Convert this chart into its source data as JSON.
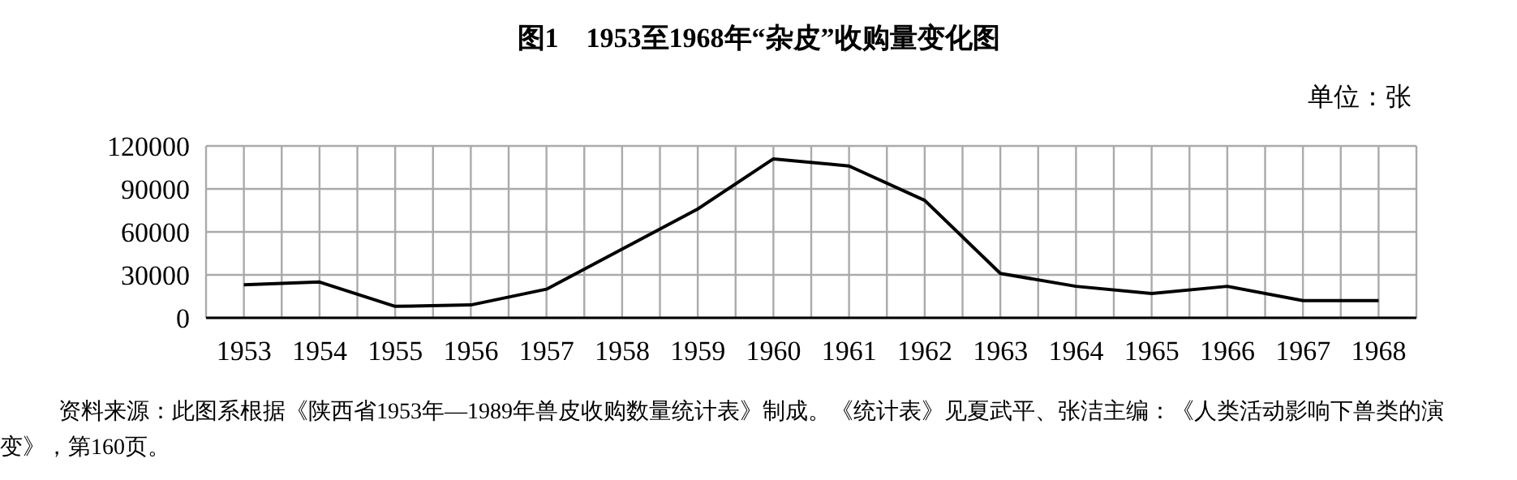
{
  "chart_data": {
    "type": "line",
    "title": "图1　1953至1968年“杂皮”收购量变化图",
    "subtitle": "单位：张",
    "categories": [
      "1953",
      "1954",
      "1955",
      "1956",
      "1957",
      "1958",
      "1959",
      "1960",
      "1961",
      "1962",
      "1963",
      "1964",
      "1965",
      "1966",
      "1967",
      "1968"
    ],
    "values": [
      23000,
      25000,
      8000,
      9000,
      20000,
      48000,
      76000,
      111000,
      106000,
      82000,
      31000,
      22000,
      17000,
      22000,
      12000,
      12000
    ],
    "color": "#000000",
    "ylim": [
      0,
      120000
    ],
    "yticks": [
      0,
      30000,
      60000,
      90000,
      120000
    ],
    "grid": true,
    "line_style": "solid",
    "marker": "none",
    "annotations": [
      "资料来源：此图系根据《陕西省1953年—1989年兽皮收购数量统计表》制成。《统计表》见夏武平、张洁主编：《人类活动影响下兽类的演变》，第160页。"
    ]
  }
}
